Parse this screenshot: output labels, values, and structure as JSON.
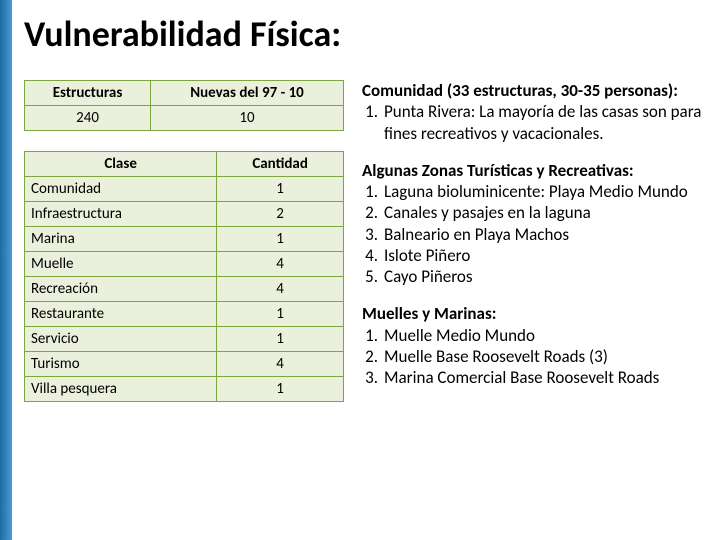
{
  "title": "Vulnerabilidad Física:",
  "table1": {
    "headers": [
      "Estructuras",
      "Nuevas del 97 - 10"
    ],
    "row": [
      "240",
      "10"
    ]
  },
  "table2": {
    "headers": [
      "Clase",
      "Cantidad"
    ],
    "rows": [
      [
        "Comunidad",
        "1"
      ],
      [
        "Infraestructura",
        "2"
      ],
      [
        "Marina",
        "1"
      ],
      [
        "Muelle",
        "4"
      ],
      [
        "Recreación",
        "4"
      ],
      [
        "Restaurante",
        "1"
      ],
      [
        "Servicio",
        "1"
      ],
      [
        "Turismo",
        "4"
      ],
      [
        "Villa pesquera",
        "1"
      ]
    ]
  },
  "block1": {
    "head": "Comunidad (33 estructuras, 30-35 personas):",
    "items": [
      "Punta Rivera: La mayoría de las casas son para fines recreativos y vacacionales."
    ]
  },
  "block2": {
    "head": "Algunas Zonas Turísticas y Recreativas:",
    "items": [
      "Laguna bioluminicente: Playa Medio Mundo",
      "Canales y pasajes en la laguna",
      "Balneario en Playa Machos",
      "Islote Piñero",
      "Cayo Piñeros"
    ]
  },
  "block3": {
    "head": "Muelles y Marinas:",
    "items": [
      "Muelle Medio Mundo",
      "Muelle Base Roosevelt Roads (3)",
      "Marina Comercial Base Roosevelt Roads"
    ]
  },
  "colors": {
    "accent_gradient_start": "#1f6ba3",
    "accent_gradient_end": "#4a9bd1",
    "table_border": "#7aa83e",
    "table_bg": "#eaf0db",
    "text": "#000000",
    "page_bg": "#ffffff"
  }
}
